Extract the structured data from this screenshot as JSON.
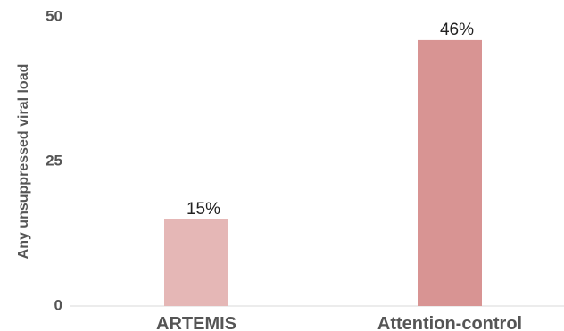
{
  "chart_data": {
    "type": "bar",
    "title": "",
    "xlabel": "",
    "ylabel": "Any unsuppressed viral load",
    "categories": [
      "ARTEMIS",
      "Attention-control"
    ],
    "values": [
      15,
      46
    ],
    "data_labels": [
      "15%",
      "46%"
    ],
    "bar_colors": [
      "#e5b7b6",
      "#d89493"
    ],
    "ylim": [
      0,
      50
    ],
    "yticks": [
      "0",
      "25",
      "50"
    ],
    "ytick_values": [
      0,
      25,
      50
    ],
    "grid": false,
    "legend": "none"
  }
}
